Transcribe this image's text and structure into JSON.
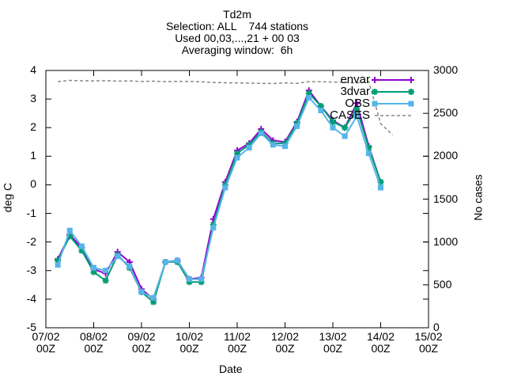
{
  "chart_data": {
    "type": "line",
    "title_lines": [
      "Td2m",
      "Selection: ALL    744 stations",
      "Used 00,03,...,21 + 00 03",
      "Averaging window:  6h"
    ],
    "xlabel": "Date",
    "ylabel": "deg C",
    "y2label": "No cases",
    "ylim": [
      -5,
      4
    ],
    "y2lim": [
      0,
      3000
    ],
    "yticks": [
      -5,
      -4,
      -3,
      -2,
      -1,
      0,
      1,
      2,
      3,
      4
    ],
    "y2ticks": [
      0,
      500,
      1000,
      1500,
      2000,
      2500,
      3000
    ],
    "xticks": [
      {
        "top": "07/02",
        "bottom": "00Z"
      },
      {
        "top": "08/02",
        "bottom": "00Z"
      },
      {
        "top": "09/02",
        "bottom": "00Z"
      },
      {
        "top": "10/02",
        "bottom": "00Z"
      },
      {
        "top": "11/02",
        "bottom": "00Z"
      },
      {
        "top": "12/02",
        "bottom": "00Z"
      },
      {
        "top": "13/02",
        "bottom": "00Z"
      },
      {
        "top": "14/02",
        "bottom": "00Z"
      },
      {
        "top": "15/02",
        "bottom": "00Z"
      }
    ],
    "x_days": [
      0.25,
      0.5,
      0.75,
      1.0,
      1.25,
      1.5,
      1.75,
      2.0,
      2.25,
      2.5,
      2.75,
      3.0,
      3.25,
      3.5,
      3.75,
      4.0,
      4.25,
      4.5,
      4.75,
      5.0,
      5.25,
      5.5,
      5.75,
      6.0,
      6.25,
      6.5,
      6.75,
      7.0,
      7.25
    ],
    "series": [
      {
        "name": "envar",
        "axis": "left",
        "color": "#9400d3",
        "marker": "plus",
        "values": [
          -2.6,
          -1.75,
          -2.2,
          -2.95,
          -3.1,
          -2.35,
          -2.7,
          -3.65,
          -4.0,
          -2.7,
          -2.65,
          -3.3,
          -3.25,
          -1.2,
          0.1,
          1.2,
          1.45,
          1.95,
          1.55,
          1.5,
          2.2,
          3.3,
          2.75,
          2.25,
          2.0,
          2.85,
          1.35,
          0.1,
          null
        ]
      },
      {
        "name": "3dvar",
        "axis": "left",
        "color": "#009e73",
        "marker": "star",
        "values": [
          -2.65,
          -1.8,
          -2.3,
          -3.05,
          -3.35,
          -2.45,
          -2.9,
          -3.75,
          -4.1,
          -2.7,
          -2.7,
          -3.4,
          -3.4,
          -1.4,
          0.0,
          1.1,
          1.4,
          1.85,
          1.45,
          1.45,
          2.15,
          3.2,
          2.75,
          2.2,
          2.0,
          2.65,
          1.3,
          0.1,
          null
        ]
      },
      {
        "name": "OBS",
        "axis": "left",
        "color": "#56b4e9",
        "marker": "square",
        "values": [
          -2.8,
          -1.6,
          -2.15,
          -2.9,
          -3.0,
          -2.5,
          -2.85,
          -3.75,
          -3.95,
          -2.7,
          -2.65,
          -3.3,
          -3.3,
          -1.5,
          -0.1,
          0.95,
          1.3,
          1.8,
          1.4,
          1.35,
          2.05,
          3.05,
          2.6,
          2.0,
          1.7,
          2.4,
          1.1,
          -0.1,
          null
        ]
      },
      {
        "name": "CASES",
        "axis": "right",
        "color": "#888888",
        "marker": "none",
        "dash": true,
        "values": [
          2870,
          2885,
          2880,
          2878,
          2882,
          2875,
          2878,
          2872,
          2875,
          2870,
          2873,
          2872,
          2868,
          2860,
          2857,
          2855,
          2852,
          2850,
          2848,
          2855,
          2850,
          2870,
          2868,
          2865,
          2860,
          2855,
          2870,
          2380,
          2250
        ]
      }
    ],
    "legend_placement": "top-right",
    "grid": false
  }
}
